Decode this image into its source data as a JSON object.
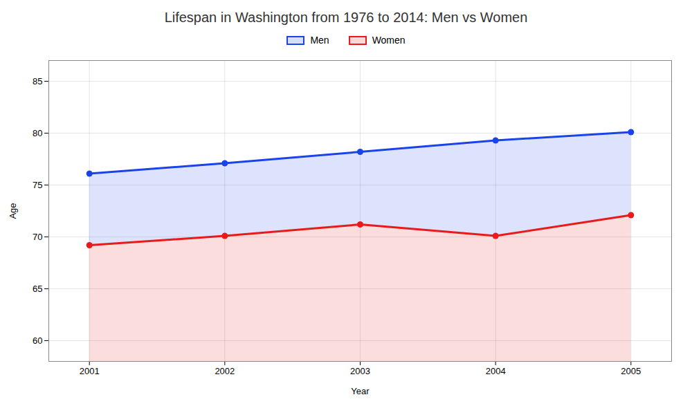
{
  "chart_data": {
    "type": "area",
    "title": "Lifespan in Washington from 1976 to 2014: Men vs Women",
    "xlabel": "Year",
    "ylabel": "Age",
    "x": [
      2001,
      2002,
      2003,
      2004,
      2005
    ],
    "series": [
      {
        "name": "Men",
        "color": "#1a44e8",
        "values": [
          76.1,
          77.1,
          78.2,
          79.3,
          80.1
        ]
      },
      {
        "name": "Women",
        "color": "#e81a1a",
        "values": [
          69.2,
          70.1,
          71.2,
          70.1,
          72.1
        ]
      }
    ],
    "marker": "circle",
    "xlim": [
      2000.7,
      2005.3
    ],
    "xticks": [
      2001,
      2002,
      2003,
      2004,
      2005
    ],
    "ylim": [
      58,
      87
    ],
    "yticks": [
      60,
      65,
      70,
      75,
      80,
      85
    ],
    "grid": true,
    "legend": "top"
  }
}
